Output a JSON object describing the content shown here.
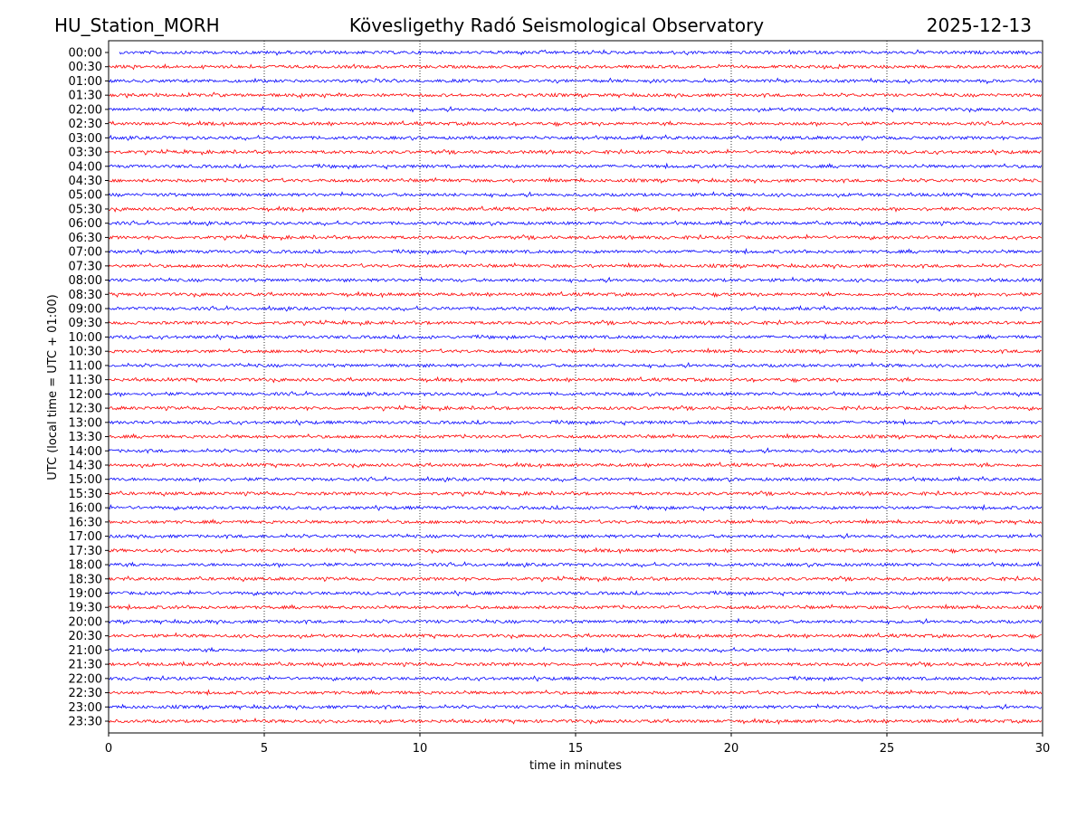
{
  "chart_data": {
    "type": "helicorder",
    "title": "Kövesligethy Radó Seismological Observatory",
    "station": "HU_Station_MORH",
    "date": "2025-12-13",
    "xlabel": "time in minutes",
    "ylabel": "UTC (local time = UTC + 01:00)",
    "categories": [
      "00:00",
      "00:30",
      "01:00",
      "01:30",
      "02:00",
      "02:30",
      "03:00",
      "03:30",
      "04:00",
      "04:30",
      "05:00",
      "05:30",
      "06:00",
      "06:30",
      "07:00",
      "07:30",
      "08:00",
      "08:30",
      "09:00",
      "09:30",
      "10:00",
      "10:30",
      "11:00",
      "11:30",
      "12:00",
      "12:30",
      "13:00",
      "13:30",
      "14:00",
      "14:30",
      "15:00",
      "15:30",
      "16:00",
      "16:30",
      "17:00",
      "17:30",
      "18:00",
      "18:30",
      "19:00",
      "19:30",
      "20:00",
      "20:30",
      "21:00",
      "21:30",
      "22:00",
      "22:30",
      "23:00",
      "23:30"
    ],
    "colors": [
      "#0000ff",
      "#ff0000"
    ],
    "xlim": [
      0,
      30
    ],
    "xticks": [
      0,
      5,
      10,
      15,
      20,
      25,
      30
    ],
    "grid": true
  }
}
